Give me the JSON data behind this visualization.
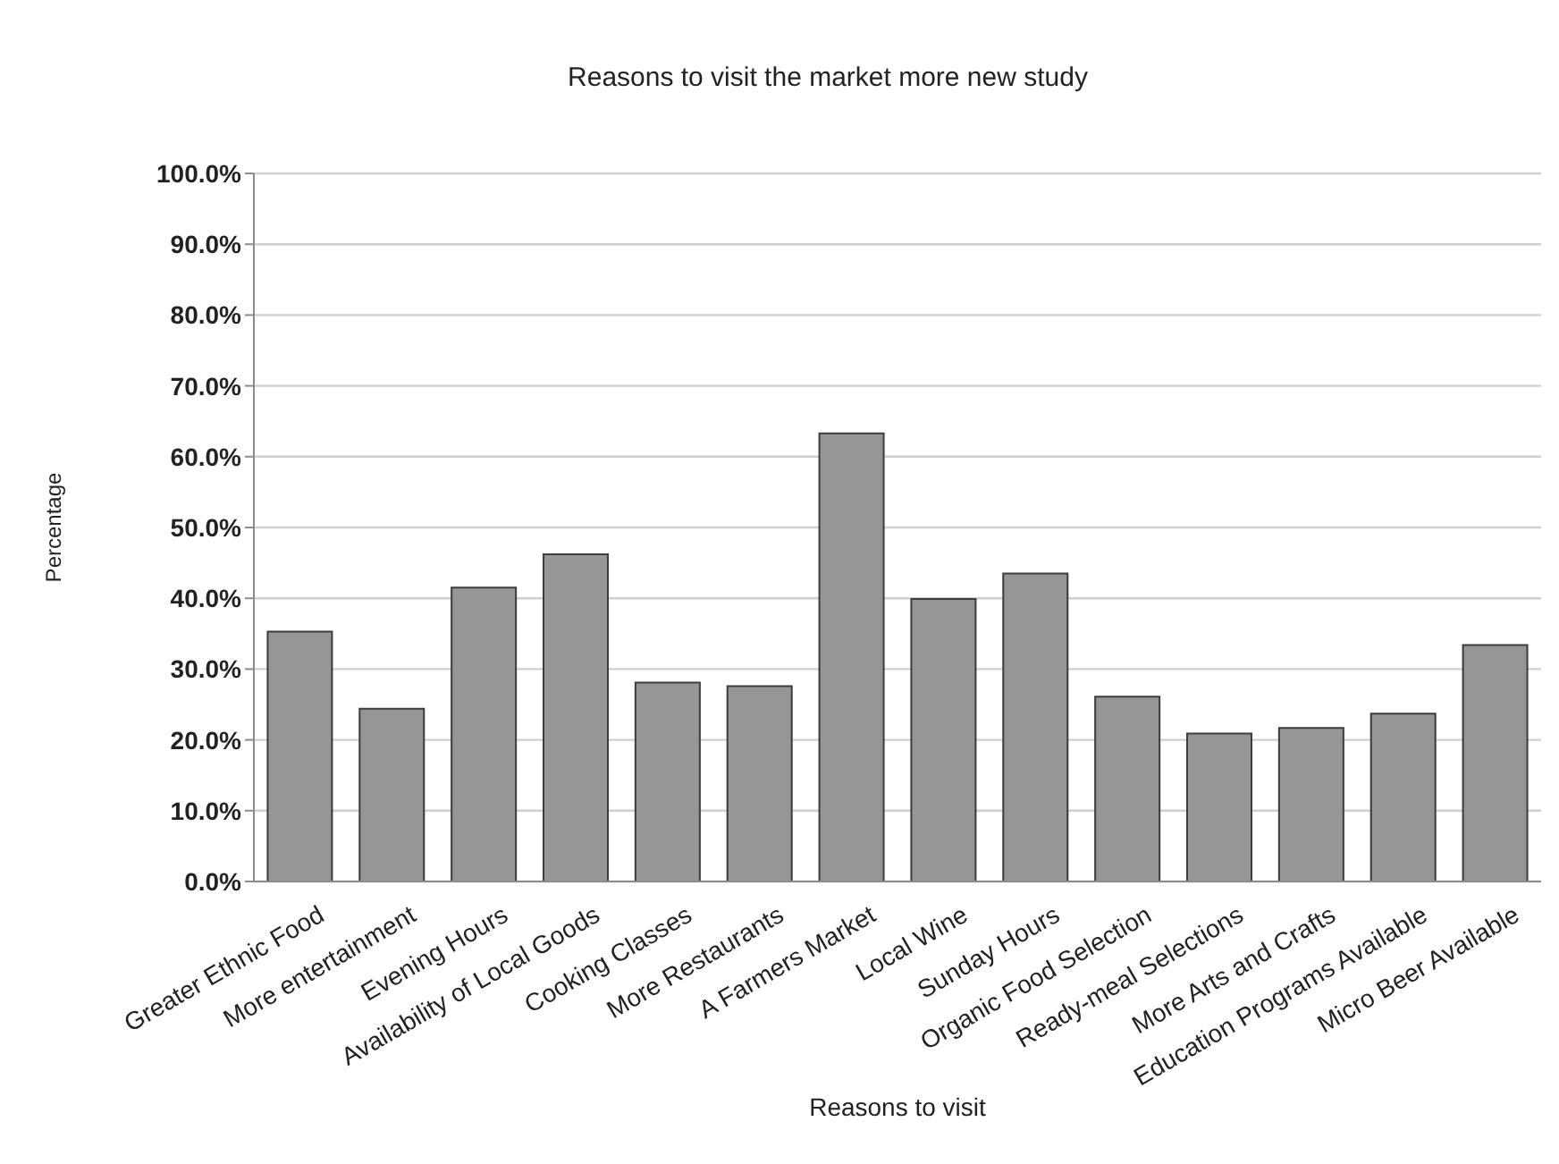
{
  "chart_data": {
    "type": "bar",
    "title": "Reasons to visit the market more new study",
    "xlabel": "Reasons to visit",
    "ylabel": "Percentage",
    "categories": [
      "Greater Ethnic Food",
      "More entertainment",
      "Evening Hours",
      "Availability of Local Goods",
      "Cooking Classes",
      "More Restaurants",
      "A Farmers Market",
      "Local Wine",
      "Sunday Hours",
      "Organic Food Selection",
      "Ready-meal Selections",
      "More Arts and Crafts",
      "Education Programs Available",
      "Micro Beer Available"
    ],
    "values": [
      35.3,
      24.4,
      41.5,
      46.2,
      28.1,
      27.6,
      63.3,
      39.9,
      43.5,
      26.1,
      20.9,
      21.7,
      23.7,
      33.4
    ],
    "color": "#969696",
    "ylim": [
      0,
      100
    ],
    "yticks": [
      {
        "value": 0,
        "label": "0.0%"
      },
      {
        "value": 10,
        "label": "10.0%"
      },
      {
        "value": 20,
        "label": "20.0%"
      },
      {
        "value": 30,
        "label": "30.0%"
      },
      {
        "value": 40,
        "label": "40.0%"
      },
      {
        "value": 50,
        "label": "50.0%"
      },
      {
        "value": 60,
        "label": "60.0%"
      },
      {
        "value": 70,
        "label": "70.0%"
      },
      {
        "value": 80,
        "label": "80.0%"
      },
      {
        "value": 90,
        "label": "90.0%"
      },
      {
        "value": 100,
        "label": "100.0%"
      }
    ],
    "grid": "y"
  }
}
